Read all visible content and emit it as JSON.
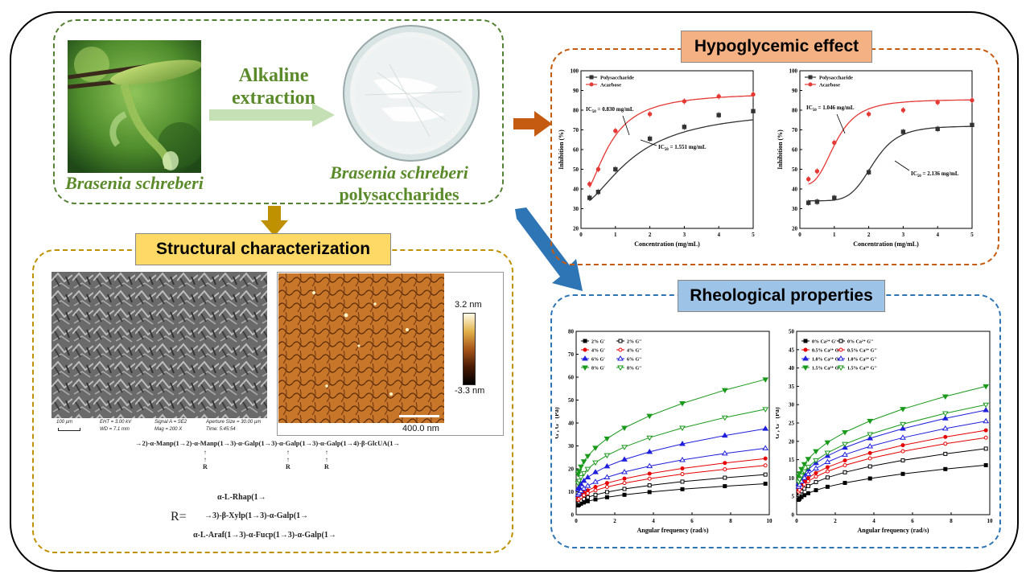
{
  "source": {
    "label": "Brasenia schreberi"
  },
  "process": {
    "label_line1": "Alkaline",
    "label_line2": "extraction"
  },
  "product": {
    "label_line1": "Brasenia schreberi",
    "label_line2": "polysaccharides"
  },
  "structural": {
    "title": "Structural characterization",
    "sem_info": {
      "scale": "100 µm",
      "eht": "EHT = 3.00 kV",
      "wd": "WD = 7.1 mm",
      "signal": "Signal A = SE2",
      "mag": "Mag = 200 X",
      "aperture": "Aperture Size = 30.00 µm",
      "time": "Time: 5:45:54"
    },
    "afm": {
      "scale_max": "3.2 nm",
      "scale_min": "-3.3 nm",
      "scalebar": "400.0 nm"
    },
    "formula_main": "→2)-α-Manp(1→2)-α-Manp(1→3)-α-Galp(1→3)-α-Galp(1→3)-α-Galp(1→4)-β-GlcUA(1→",
    "formula_subs": [
      "R",
      "R",
      "R"
    ],
    "r_label": "R=",
    "r_options": [
      "α-L-Rhap(1→",
      "→3)-β-Xylp(1→3)-α-Galp(1→",
      "α-L-Araf(1→3)-α-Fucp(1→3)-α-Galp(1→"
    ]
  },
  "hypoglycemic": {
    "title": "Hypoglycemic effect",
    "colors": {
      "box": "#f4b183",
      "border": "#c55a11"
    }
  },
  "rheological": {
    "title": "Rheological properties",
    "colors": {
      "box": "#9dc3e6",
      "border": "#2e75b6"
    }
  },
  "colors": {
    "green_border": "#548235",
    "gold_border": "#bf9000",
    "struct_box": "#ffd966",
    "arrow_green": "#c5e0b4",
    "arrow_gold": "#bf9000",
    "arrow_orange": "#c55a11",
    "arrow_blue": "#2e75b6"
  },
  "chart_data": [
    {
      "type": "line",
      "id": "hypo-1",
      "xlabel": "Concentration (mg/mL)",
      "ylabel": "Inhibition (%)",
      "xlim": [
        0,
        5
      ],
      "ylim": [
        20,
        100
      ],
      "xticks": [
        0,
        1,
        2,
        3,
        4,
        5
      ],
      "yticks": [
        20,
        30,
        40,
        50,
        60,
        70,
        80,
        90,
        100
      ],
      "series": [
        {
          "name": "Polysaccharide",
          "color": "#333333",
          "marker": "square",
          "x": [
            0.25,
            0.5,
            1,
            2,
            3,
            4,
            5
          ],
          "y": [
            35.5,
            38.5,
            50,
            65.5,
            71.5,
            77.5,
            79.5
          ]
        },
        {
          "name": "Acarbose",
          "color": "#e53935",
          "marker": "circle",
          "x": [
            0.25,
            0.5,
            1,
            2,
            3,
            4,
            5
          ],
          "y": [
            42.5,
            50,
            69.5,
            78,
            84.5,
            87,
            88
          ]
        }
      ],
      "annotations": [
        {
          "sub_text": "50",
          "text_pre": "IC",
          "text_post": " = 0.830 mg/mL"
        },
        {
          "sub_text": "50",
          "text_pre": "IC",
          "text_post": " = 1.551 mg/mL"
        }
      ]
    },
    {
      "type": "line",
      "id": "hypo-2",
      "xlabel": "Concentration (mg/mL)",
      "ylabel": "Inhibition (%)",
      "xlim": [
        0,
        5
      ],
      "ylim": [
        20,
        100
      ],
      "xticks": [
        0,
        1,
        2,
        3,
        4,
        5
      ],
      "yticks": [
        20,
        30,
        40,
        50,
        60,
        70,
        80,
        90,
        100
      ],
      "series": [
        {
          "name": "Polysaccharide",
          "color": "#333333",
          "marker": "square",
          "x": [
            0.25,
            0.5,
            1,
            2,
            3,
            4,
            5
          ],
          "y": [
            33,
            33.5,
            35.5,
            48.5,
            69,
            70.5,
            72.5
          ]
        },
        {
          "name": "Acarbose",
          "color": "#e53935",
          "marker": "circle",
          "x": [
            0.25,
            0.5,
            1,
            2,
            3,
            4,
            5
          ],
          "y": [
            45,
            49,
            63.5,
            78,
            80,
            84,
            85
          ]
        }
      ],
      "annotations": [
        {
          "sub_text": "50",
          "text_pre": "IC",
          "text_post": " = 1.046 mg/mL"
        },
        {
          "sub_text": "50",
          "text_pre": "IC",
          "text_post": " = 2.136 mg/mL"
        }
      ]
    },
    {
      "type": "line",
      "id": "rheo-1",
      "xlabel": "Angular frequency (rad/s)",
      "ylabel": "G', G'' (Pa)",
      "xlim": [
        0,
        10
      ],
      "ylim": [
        0,
        80
      ],
      "xticks": [
        0,
        2,
        4,
        6,
        8,
        10
      ],
      "yticks": [
        0,
        10,
        20,
        30,
        40,
        50,
        60,
        70,
        80
      ],
      "series": [
        {
          "name": "2% G'",
          "color": "#000000",
          "marker": "square",
          "filled": true,
          "end": 13.5
        },
        {
          "name": "2% G''",
          "color": "#000000",
          "marker": "square",
          "filled": false,
          "end": 17.5
        },
        {
          "name": "4% G'",
          "color": "#e60000",
          "marker": "circle",
          "filled": true,
          "end": 24.5
        },
        {
          "name": "4% G''",
          "color": "#e60000",
          "marker": "circle",
          "filled": false,
          "end": 21.5
        },
        {
          "name": "6% G'",
          "color": "#1f1fdc",
          "marker": "triangle",
          "filled": true,
          "end": 37.5
        },
        {
          "name": "6% G''",
          "color": "#1f1fdc",
          "marker": "triangle",
          "filled": false,
          "end": 29
        },
        {
          "name": "8% G'",
          "color": "#1a9a1a",
          "marker": "tridown",
          "filled": true,
          "end": 59
        },
        {
          "name": "8% G''",
          "color": "#1a9a1a",
          "marker": "tridown",
          "filled": false,
          "end": 46
        }
      ]
    },
    {
      "type": "line",
      "id": "rheo-2",
      "xlabel": "Angular frequency (rad/s)",
      "ylabel": "G', G'' (Pa)",
      "xlim": [
        0,
        10
      ],
      "ylim": [
        0,
        50
      ],
      "xticks": [
        0,
        2,
        4,
        6,
        8,
        10
      ],
      "yticks": [
        0,
        5,
        10,
        15,
        20,
        25,
        30,
        35,
        40,
        45,
        50
      ],
      "series": [
        {
          "name": "0% Ca²⁺ G'",
          "color": "#000000",
          "marker": "square",
          "filled": true,
          "end": 13.5
        },
        {
          "name": "0% Ca²⁺ G''",
          "color": "#000000",
          "marker": "square",
          "filled": false,
          "end": 18
        },
        {
          "name": "0.5% Ca²⁺ G'",
          "color": "#e60000",
          "marker": "circle",
          "filled": true,
          "end": 23
        },
        {
          "name": "0.5% Ca²⁺ G''",
          "color": "#e60000",
          "marker": "circle",
          "filled": false,
          "end": 21
        },
        {
          "name": "1.0% Ca²⁺ G'",
          "color": "#1f1fdc",
          "marker": "triangle",
          "filled": true,
          "end": 28.5
        },
        {
          "name": "1.0% Ca²⁺ G''",
          "color": "#1f1fdc",
          "marker": "triangle",
          "filled": false,
          "end": 25.5
        },
        {
          "name": "1.5% Ca²⁺ G'",
          "color": "#1a9a1a",
          "marker": "tridown",
          "filled": true,
          "end": 35
        },
        {
          "name": "1.5% Ca²⁺ G''",
          "color": "#1a9a1a",
          "marker": "tridown",
          "filled": false,
          "end": 30
        }
      ]
    }
  ]
}
